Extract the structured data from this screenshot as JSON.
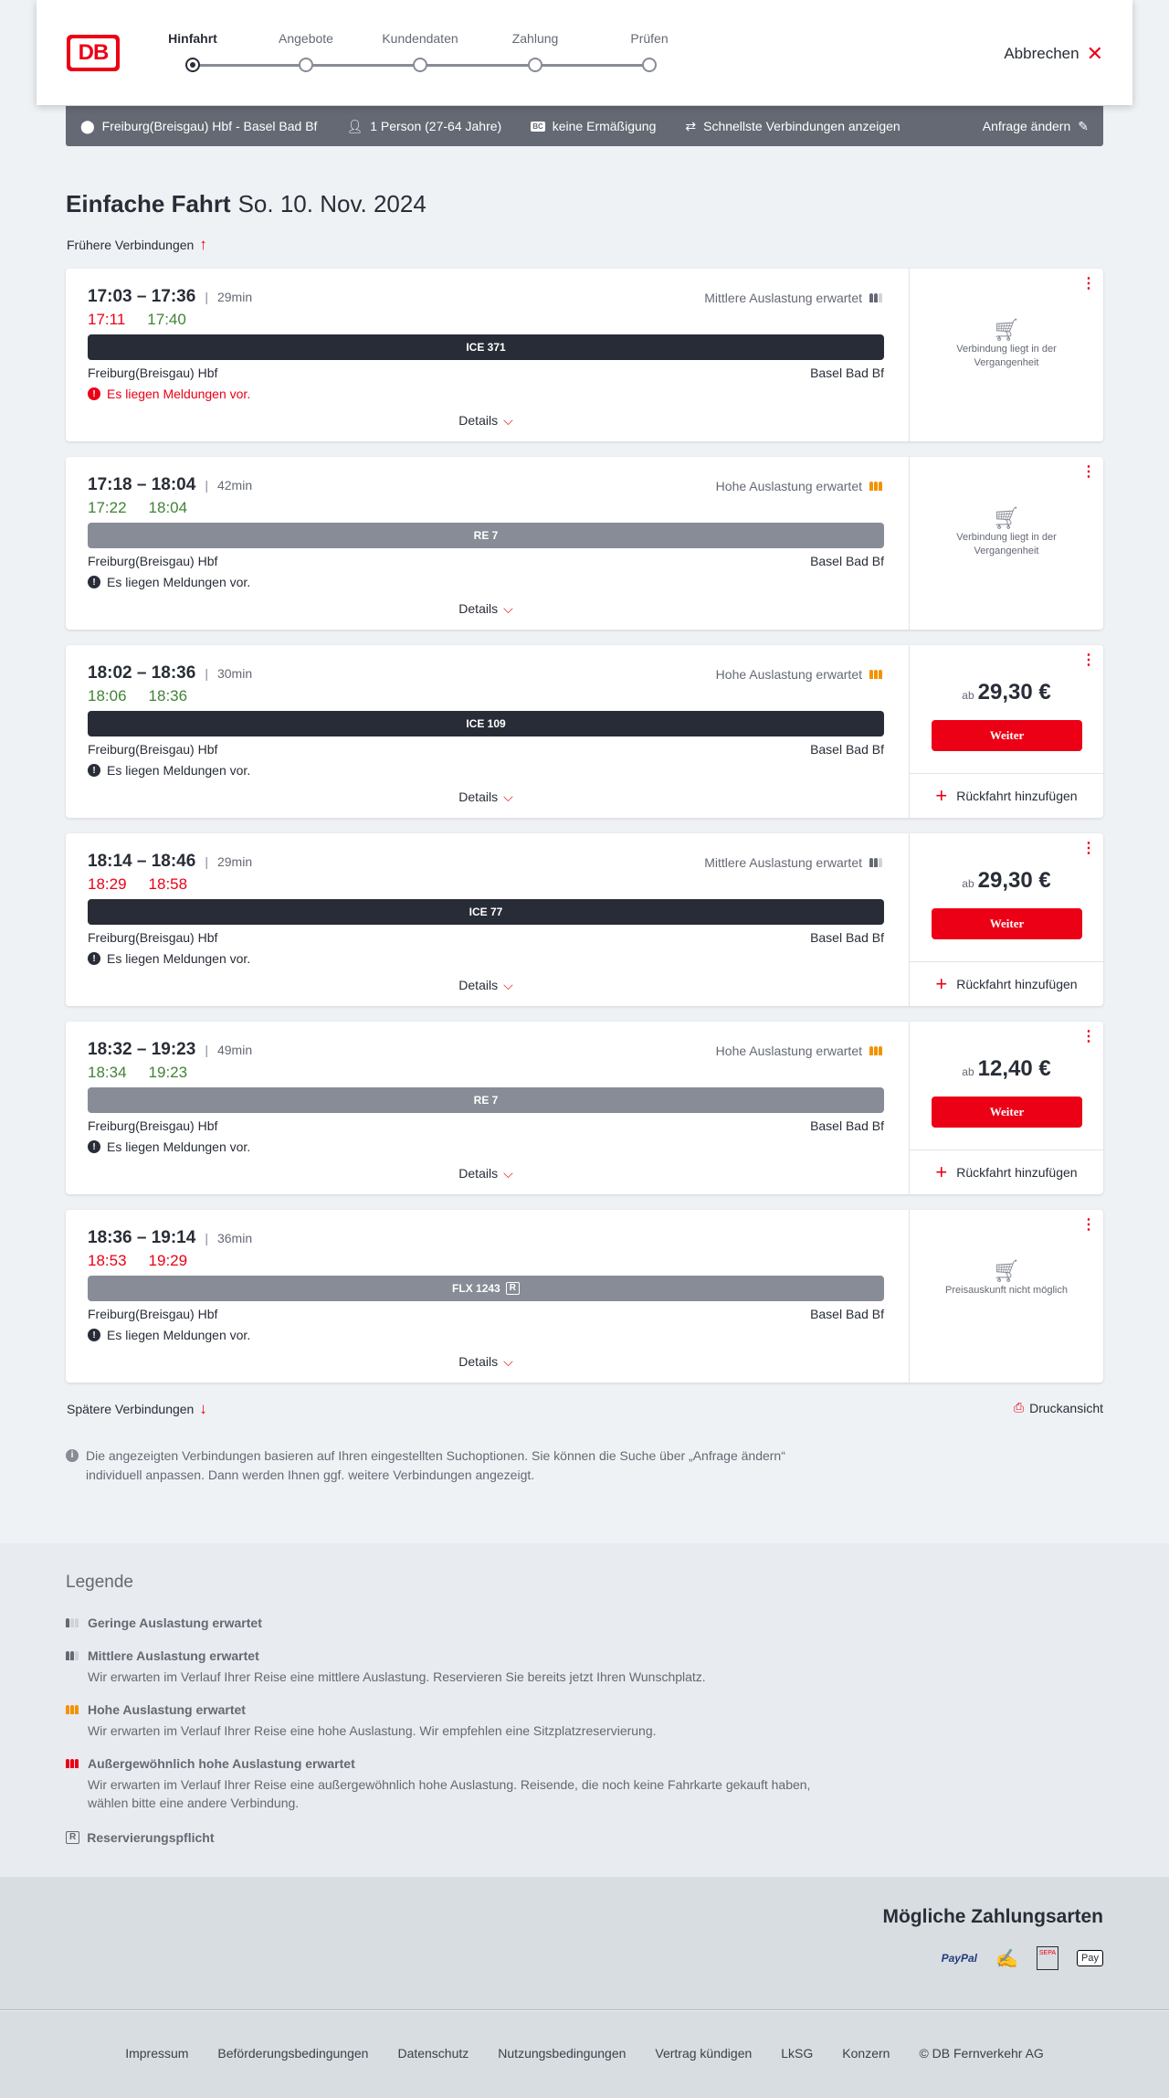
{
  "header": {
    "logo": "DB",
    "steps": [
      "Hinfahrt",
      "Angebote",
      "Kundendaten",
      "Zahlung",
      "Prüfen"
    ],
    "active_step": 0,
    "cancel": "Abbrechen"
  },
  "search": {
    "route": "Freiburg(Breisgau) Hbf - Basel Bad Bf",
    "passengers": "1 Person (27-64 Jahre)",
    "discount": "keine Ermäßigung",
    "fastest": "Schnellste Verbindungen anzeigen",
    "edit": "Anfrage ändern"
  },
  "page": {
    "title": "Einfache Fahrt",
    "date": "So. 10. Nov. 2024",
    "earlier": "Frühere Verbindungen",
    "later": "Spätere Verbindungen",
    "print": "Druckansicht",
    "info": "Die angezeigten Verbindungen basieren auf Ihren eingestellten Suchoptionen. Sie können die Suche über „Anfrage ändern“ individuell anpassen. Dann werden Ihnen ggf. weitere Verbindungen angezeigt."
  },
  "colors": {
    "red": "#ec0016",
    "green": "#408335",
    "dark_bar": "#282c36",
    "grey_bar": "#878c96",
    "orange": "#f39200"
  },
  "card_labels": {
    "details": "Details",
    "ab": "ab",
    "weiter": "Weiter",
    "return": "Rückfahrt hinzufügen",
    "message": "Es liegen Meldungen vor."
  },
  "connections": [
    {
      "times": "17:03 – 17:36",
      "duration": "29min",
      "rt_dep": "17:11",
      "rt_dep_late": true,
      "rt_arr": "17:40",
      "rt_arr_late": false,
      "load": "Mittlere Auslastung erwartet",
      "load_level": "medium",
      "train": "ICE 371",
      "bar": "dark",
      "reservation": false,
      "from": "Freiburg(Breisgau) Hbf",
      "to": "Basel Bad Bf",
      "message_red": true,
      "status": "Verbindung liegt in der Vergangenheit"
    },
    {
      "times": "17:18 – 18:04",
      "duration": "42min",
      "rt_dep": "17:22",
      "rt_dep_late": false,
      "rt_arr": "18:04",
      "rt_arr_late": false,
      "load": "Hohe Auslastung erwartet",
      "load_level": "high",
      "train": "RE 7",
      "bar": "grey",
      "reservation": false,
      "from": "Freiburg(Breisgau) Hbf",
      "to": "Basel Bad Bf",
      "message_red": false,
      "status": "Verbindung liegt in der Vergangenheit"
    },
    {
      "times": "18:02 – 18:36",
      "duration": "30min",
      "rt_dep": "18:06",
      "rt_dep_late": false,
      "rt_arr": "18:36",
      "rt_arr_late": false,
      "load": "Hohe Auslastung erwartet",
      "load_level": "high",
      "train": "ICE 109",
      "bar": "dark",
      "reservation": false,
      "from": "Freiburg(Breisgau) Hbf",
      "to": "Basel Bad Bf",
      "message_red": false,
      "price": "29,30 €"
    },
    {
      "times": "18:14 – 18:46",
      "duration": "29min",
      "rt_dep": "18:29",
      "rt_dep_late": true,
      "rt_arr": "18:58",
      "rt_arr_late": true,
      "load": "Mittlere Auslastung erwartet",
      "load_level": "medium",
      "train": "ICE 77",
      "bar": "dark",
      "reservation": false,
      "from": "Freiburg(Breisgau) Hbf",
      "to": "Basel Bad Bf",
      "message_red": false,
      "price": "29,30 €"
    },
    {
      "times": "18:32 – 19:23",
      "duration": "49min",
      "rt_dep": "18:34",
      "rt_dep_late": false,
      "rt_arr": "19:23",
      "rt_arr_late": false,
      "load": "Hohe Auslastung erwartet",
      "load_level": "high",
      "train": "RE 7",
      "bar": "grey",
      "reservation": false,
      "from": "Freiburg(Breisgau) Hbf",
      "to": "Basel Bad Bf",
      "message_red": false,
      "price": "12,40 €"
    },
    {
      "times": "18:36 – 19:14",
      "duration": "36min",
      "rt_dep": "18:53",
      "rt_dep_late": true,
      "rt_arr": "19:29",
      "rt_arr_late": true,
      "load": "",
      "load_level": "",
      "train": "FLX 1243",
      "bar": "grey",
      "reservation": true,
      "reservation_icon": "R",
      "from": "Freiburg(Breisgau) Hbf",
      "to": "Basel Bad Bf",
      "message_red": false,
      "status": "Preisauskunft nicht möglich"
    }
  ],
  "legend": {
    "title": "Legende",
    "items": [
      {
        "level": "low",
        "title": "Geringe Auslastung erwartet",
        "text": ""
      },
      {
        "level": "medium",
        "title": "Mittlere Auslastung erwartet",
        "text": "Wir erwarten im Verlauf Ihrer Reise eine mittlere Auslastung. Reservieren Sie bereits jetzt Ihren Wunschplatz."
      },
      {
        "level": "high",
        "title": "Hohe Auslastung erwartet",
        "text": "Wir erwarten im Verlauf Ihrer Reise eine hohe Auslastung. Wir empfehlen eine Sitzplatzreservierung."
      },
      {
        "level": "extreme",
        "title": "Außergewöhnlich hohe Auslastung erwartet",
        "text": "Wir erwarten im Verlauf Ihrer Reise eine außergewöhnlich hohe Auslastung. Reisende, die noch keine Fahrkarte gekauft haben, wählen bitte eine andere Verbindung."
      },
      {
        "level": "reservation",
        "icon": "R",
        "title": "Reservierungspflicht",
        "text": ""
      }
    ]
  },
  "payment": {
    "title": "Mögliche Zahlungsarten",
    "methods": [
      "PayPal",
      "Kreditkarte",
      "SEPA Lastschrift",
      "Apple Pay"
    ],
    "paypal": "PayPal",
    "sepa": "SEPA",
    "applepay": "Pay"
  },
  "footer": {
    "links": [
      "Impressum",
      "Beförderungsbedingungen",
      "Datenschutz",
      "Nutzungsbedingungen",
      "Vertrag kündigen",
      "LkSG",
      "Konzern",
      "© DB Fernverkehr AG"
    ]
  }
}
